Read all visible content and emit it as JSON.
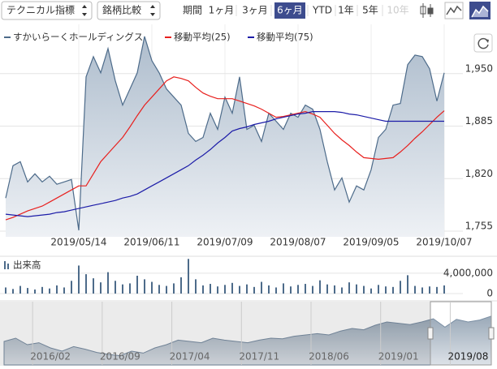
{
  "toolbar": {
    "technical": "テクニカル指標",
    "compare": "銘柄比較",
    "period_label": "期間",
    "periods": [
      {
        "label": "1ヶ月",
        "selected": false,
        "enabled": true
      },
      {
        "label": "3ヶ月",
        "selected": false,
        "enabled": true
      },
      {
        "label": "6ヶ月",
        "selected": true,
        "enabled": true
      },
      {
        "label": "YTD",
        "selected": false,
        "enabled": true
      },
      {
        "label": "1年",
        "selected": false,
        "enabled": true
      },
      {
        "label": "5年",
        "selected": false,
        "enabled": true
      },
      {
        "label": "10年",
        "selected": false,
        "enabled": false
      }
    ]
  },
  "chart_data": [
    {
      "type": "line",
      "grid": true,
      "categories": [
        null,
        null,
        null,
        null,
        null,
        null,
        null,
        null,
        null,
        null,
        "2019/05/14",
        null,
        null,
        null,
        null,
        null,
        null,
        null,
        null,
        null,
        "2019/06/11",
        null,
        null,
        null,
        null,
        null,
        null,
        null,
        null,
        null,
        "2019/07/09",
        null,
        null,
        null,
        null,
        null,
        null,
        null,
        null,
        null,
        "2019/08/07",
        null,
        null,
        null,
        null,
        null,
        null,
        null,
        null,
        null,
        "2019/09/05",
        null,
        null,
        null,
        null,
        null,
        null,
        null,
        null,
        null,
        "2019/10/07"
      ],
      "series": [
        {
          "name": "すかいらーくホールディングス",
          "color": "#4d6b8a",
          "area": true,
          "values": [
            1796,
            1836,
            1841,
            1816,
            1826,
            1816,
            1823,
            1813,
            1816,
            1819,
            1756,
            1946,
            1971,
            1951,
            1981,
            1941,
            1911,
            1931,
            1951,
            1996,
            1966,
            1951,
            1931,
            1921,
            1911,
            1876,
            1866,
            1871,
            1901,
            1881,
            1921,
            1901,
            1946,
            1881,
            1886,
            1866,
            1901,
            1891,
            1881,
            1901,
            1896,
            1911,
            1906,
            1881,
            1841,
            1806,
            1821,
            1791,
            1811,
            1806,
            1831,
            1871,
            1881,
            1911,
            1913,
            1961,
            1973,
            1971,
            1956,
            1916,
            1951
          ]
        },
        {
          "name": "移動平均(25)",
          "color": "#e8201e",
          "area": false,
          "values": [
            1769,
            1772,
            1776,
            1780,
            1783,
            1786,
            1791,
            1796,
            1801,
            1806,
            1811,
            1811,
            1826,
            1841,
            1851,
            1861,
            1871,
            1884,
            1898,
            1911,
            1921,
            1931,
            1941,
            1946,
            1944,
            1941,
            1933,
            1926,
            1922,
            1919,
            1919,
            1919,
            1916,
            1913,
            1910,
            1906,
            1901,
            1896,
            1897,
            1899,
            1901,
            1903,
            1900,
            1896,
            1886,
            1876,
            1868,
            1861,
            1853,
            1846,
            1845,
            1844,
            1845,
            1846,
            1853,
            1861,
            1870,
            1878,
            1887,
            1896,
            1904
          ]
        },
        {
          "name": "移動平均(75)",
          "color": "#1c1ca8",
          "area": false,
          "values": [
            1776,
            1775,
            1774,
            1773,
            1774,
            1775,
            1776,
            1778,
            1779,
            1781,
            1783,
            1785,
            1787,
            1789,
            1791,
            1793,
            1796,
            1798,
            1801,
            1806,
            1811,
            1816,
            1821,
            1826,
            1831,
            1836,
            1843,
            1849,
            1856,
            1864,
            1871,
            1879,
            1882,
            1884,
            1887,
            1889,
            1891,
            1894,
            1896,
            1898,
            1900,
            1901,
            1903,
            1903,
            1903,
            1903,
            1902,
            1900,
            1899,
            1897,
            1895,
            1893,
            1891,
            1891,
            1891,
            1891,
            1891,
            1891,
            1891,
            1891,
            1891
          ]
        }
      ],
      "ylim": [
        1748,
        2011
      ],
      "yticks": [
        {
          "value": 1755,
          "label": "1,755"
        },
        {
          "value": 1820,
          "label": "1,820"
        },
        {
          "value": 1885,
          "label": "1,885"
        },
        {
          "value": 1950,
          "label": "1,950"
        }
      ]
    },
    {
      "type": "bar",
      "title": "出来高",
      "color": "#4d6b8a",
      "grid": true,
      "values": [
        1200000,
        900000,
        1500000,
        1100000,
        800000,
        1300000,
        1000000,
        1600000,
        1200000,
        2500000,
        5500000,
        3800000,
        3000000,
        2200000,
        4200000,
        2500000,
        1800000,
        2000000,
        3500000,
        2800000,
        2300000,
        1700000,
        1500000,
        2000000,
        3200000,
        6800000,
        2800000,
        1600000,
        1900000,
        1400000,
        1700000,
        2100000,
        1500000,
        1800000,
        1300000,
        2300000,
        1600000,
        1200000,
        2000000,
        1400000,
        1700000,
        1900000,
        1500000,
        2600000,
        1800000,
        1600000,
        1200000,
        2200000,
        1800000,
        1500000,
        1000000,
        1700000,
        1400000,
        1300000,
        2500000,
        3600000,
        1500000,
        1200000,
        1400000,
        1300000,
        1600000
      ],
      "ylim": [
        0,
        7000000
      ],
      "yticks": [
        0,
        {
          "value": 4000000,
          "label": "4,000,000"
        }
      ]
    },
    {
      "type": "area",
      "color": "#7a8ea3",
      "categories": [
        null,
        null,
        null,
        null,
        "2016/02",
        null,
        null,
        null,
        null,
        null,
        "2016/09",
        null,
        null,
        null,
        null,
        null,
        "2017/04",
        null,
        null,
        null,
        null,
        null,
        "2017/11",
        null,
        null,
        null,
        null,
        null,
        "2018/06",
        null,
        null,
        null,
        null,
        null,
        "2019/01",
        null,
        null,
        null,
        null,
        null,
        "2019/08",
        null,
        null
      ],
      "values": [
        1600,
        1650,
        1550,
        1580,
        1500,
        1450,
        1520,
        1480,
        1430,
        1400,
        1380,
        1450,
        1420,
        1500,
        1550,
        1620,
        1600,
        1580,
        1650,
        1620,
        1600,
        1580,
        1620,
        1650,
        1640,
        1680,
        1700,
        1720,
        1700,
        1760,
        1800,
        1780,
        1850,
        1900,
        1880,
        1860,
        1900,
        1950,
        1820,
        1940,
        1900,
        1930,
        1990
      ],
      "ylim": [
        1300,
        2050
      ]
    }
  ]
}
